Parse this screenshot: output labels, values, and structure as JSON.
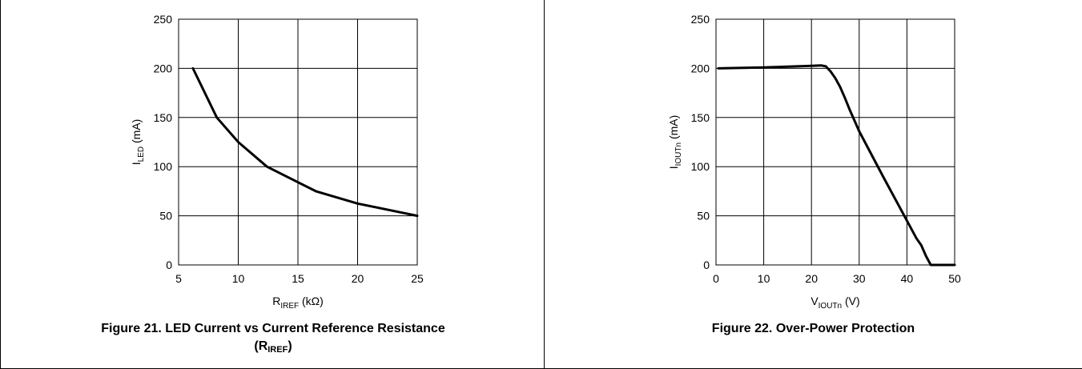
{
  "chart_data": [
    {
      "type": "line",
      "caption": "Figure 21. LED Current vs Current Reference Resistance",
      "caption_line2_main": "(R",
      "caption_line2_sub": "IREF",
      "caption_line2_end": ")",
      "ylabel_main": "I",
      "ylabel_sub": "LED",
      "ylabel_unit": " (mA)",
      "xlabel_main": "R",
      "xlabel_sub": "IREF",
      "xlabel_unit": " (kΩ)",
      "xlim": [
        5,
        25
      ],
      "ylim": [
        0,
        250
      ],
      "xticks": [
        5,
        10,
        15,
        20,
        25
      ],
      "yticks": [
        0,
        50,
        100,
        150,
        200,
        250
      ],
      "grid": true,
      "series": [
        {
          "x": [
            6.2,
            8.2,
            10,
            12.4,
            16.5,
            20,
            25
          ],
          "y": [
            200,
            150,
            125,
            100,
            75,
            62.5,
            50
          ]
        }
      ]
    },
    {
      "type": "line",
      "caption": "Figure 22. Over-Power Protection",
      "ylabel_main": "I",
      "ylabel_sub": "IOUTn",
      "ylabel_unit": " (mA)",
      "xlabel_main": "V",
      "xlabel_sub": "IOUTn",
      "xlabel_unit": " (V)",
      "xlim": [
        0,
        50
      ],
      "ylim": [
        0,
        250
      ],
      "xticks": [
        0,
        10,
        20,
        30,
        40,
        50
      ],
      "yticks": [
        0,
        50,
        100,
        150,
        200,
        250
      ],
      "grid": true,
      "series": [
        {
          "x": [
            0.5,
            10,
            20,
            22,
            23,
            24,
            25,
            26,
            27,
            28,
            30,
            35,
            40,
            42,
            43,
            44,
            45,
            50
          ],
          "y": [
            200,
            201,
            202.5,
            203,
            202,
            197,
            190,
            181,
            170,
            158,
            136,
            90,
            45,
            27,
            20,
            9,
            0,
            0
          ]
        }
      ]
    }
  ]
}
